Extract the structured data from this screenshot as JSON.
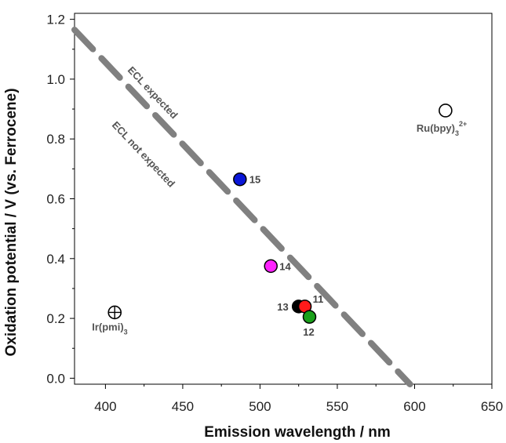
{
  "chart_data": {
    "type": "scatter",
    "title": "",
    "xlabel": "Emission wavelength / nm",
    "ylabel": "Oxidation potential / V (vs. Ferrocene)",
    "xlim": [
      380,
      650
    ],
    "ylim": [
      -0.02,
      1.22
    ],
    "xticks": [
      "400",
      "450",
      "500",
      "550",
      "600",
      "650"
    ],
    "yticks": [
      "0.0",
      "0.2",
      "0.4",
      "0.6",
      "0.8",
      "1.0",
      "1.2"
    ],
    "grid": false,
    "points": [
      {
        "label": "15",
        "x": 487,
        "y": 0.665,
        "color": "#0a16d8"
      },
      {
        "label": "14",
        "x": 507,
        "y": 0.375,
        "color": "#ff22ff"
      },
      {
        "label": "13",
        "x": 525,
        "y": 0.24,
        "color": "#000000"
      },
      {
        "label": "11",
        "x": 529,
        "y": 0.24,
        "color": "#ff1a1a"
      },
      {
        "label": "12",
        "x": 532,
        "y": 0.205,
        "color": "#1aa01a"
      }
    ],
    "references": [
      {
        "name": "Ru(bpy)",
        "sub": "3",
        "sup": "2+",
        "x": 620,
        "y": 0.895,
        "marker": "open-circle"
      },
      {
        "name": "Ir(pmi)",
        "sub": "3",
        "x": 406,
        "y": 0.22,
        "marker": "crossed-circle"
      }
    ],
    "threshold_line": {
      "style": "dashed",
      "color": "#808080",
      "points": [
        [
          380,
          1.165
        ],
        [
          597,
          -0.02
        ]
      ]
    },
    "region_labels": {
      "above": "ECL expected",
      "below": "ECL not expected"
    }
  }
}
